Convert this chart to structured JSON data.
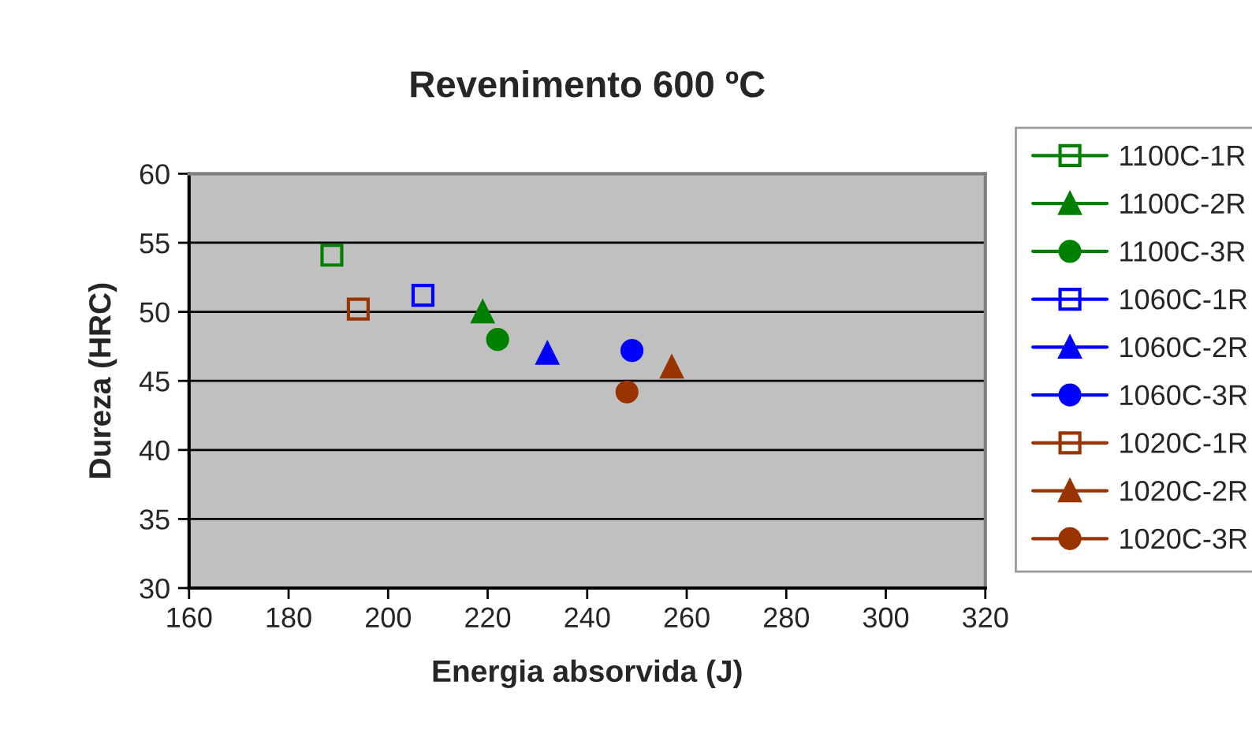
{
  "chart_data": {
    "type": "scatter",
    "title": "Revenimento 600 ºC",
    "xlabel": "Energia absorvida (J)",
    "ylabel": "Dureza (HRC)",
    "xlim": [
      160,
      320
    ],
    "xticks": [
      160,
      180,
      200,
      220,
      240,
      260,
      280,
      300,
      320
    ],
    "ylim": [
      30,
      60
    ],
    "yticks": [
      30,
      35,
      40,
      45,
      50,
      55,
      60
    ],
    "grid": "y",
    "legend": "right",
    "line_style": "solid",
    "series": [
      {
        "name": "1100C-1R",
        "color": "#008000",
        "marker": "square",
        "x": [
          188.7
        ],
        "values": [
          54.1
        ]
      },
      {
        "name": "1100C-2R",
        "color": "#008000",
        "marker": "triangle",
        "x": [
          219
        ],
        "values": [
          50
        ]
      },
      {
        "name": "1100C-3R",
        "color": "#008000",
        "marker": "circle",
        "x": [
          222
        ],
        "values": [
          48
        ]
      },
      {
        "name": "1060C-1R",
        "color": "#0000ff",
        "marker": "square",
        "x": [
          207
        ],
        "values": [
          51.2
        ]
      },
      {
        "name": "1060C-2R",
        "color": "#0000ff",
        "marker": "triangle",
        "x": [
          232
        ],
        "values": [
          47
        ]
      },
      {
        "name": "1060C-3R",
        "color": "#0000ff",
        "marker": "circle",
        "x": [
          249
        ],
        "values": [
          47.2
        ]
      },
      {
        "name": "1020C-1R",
        "color": "#993300",
        "marker": "square",
        "x": [
          194
        ],
        "values": [
          50.2
        ]
      },
      {
        "name": "1020C-2R",
        "color": "#993300",
        "marker": "triangle",
        "x": [
          257
        ],
        "values": [
          46
        ]
      },
      {
        "name": "1020C-3R",
        "color": "#993300",
        "marker": "circle",
        "x": [
          248
        ],
        "values": [
          44.2
        ]
      }
    ]
  }
}
